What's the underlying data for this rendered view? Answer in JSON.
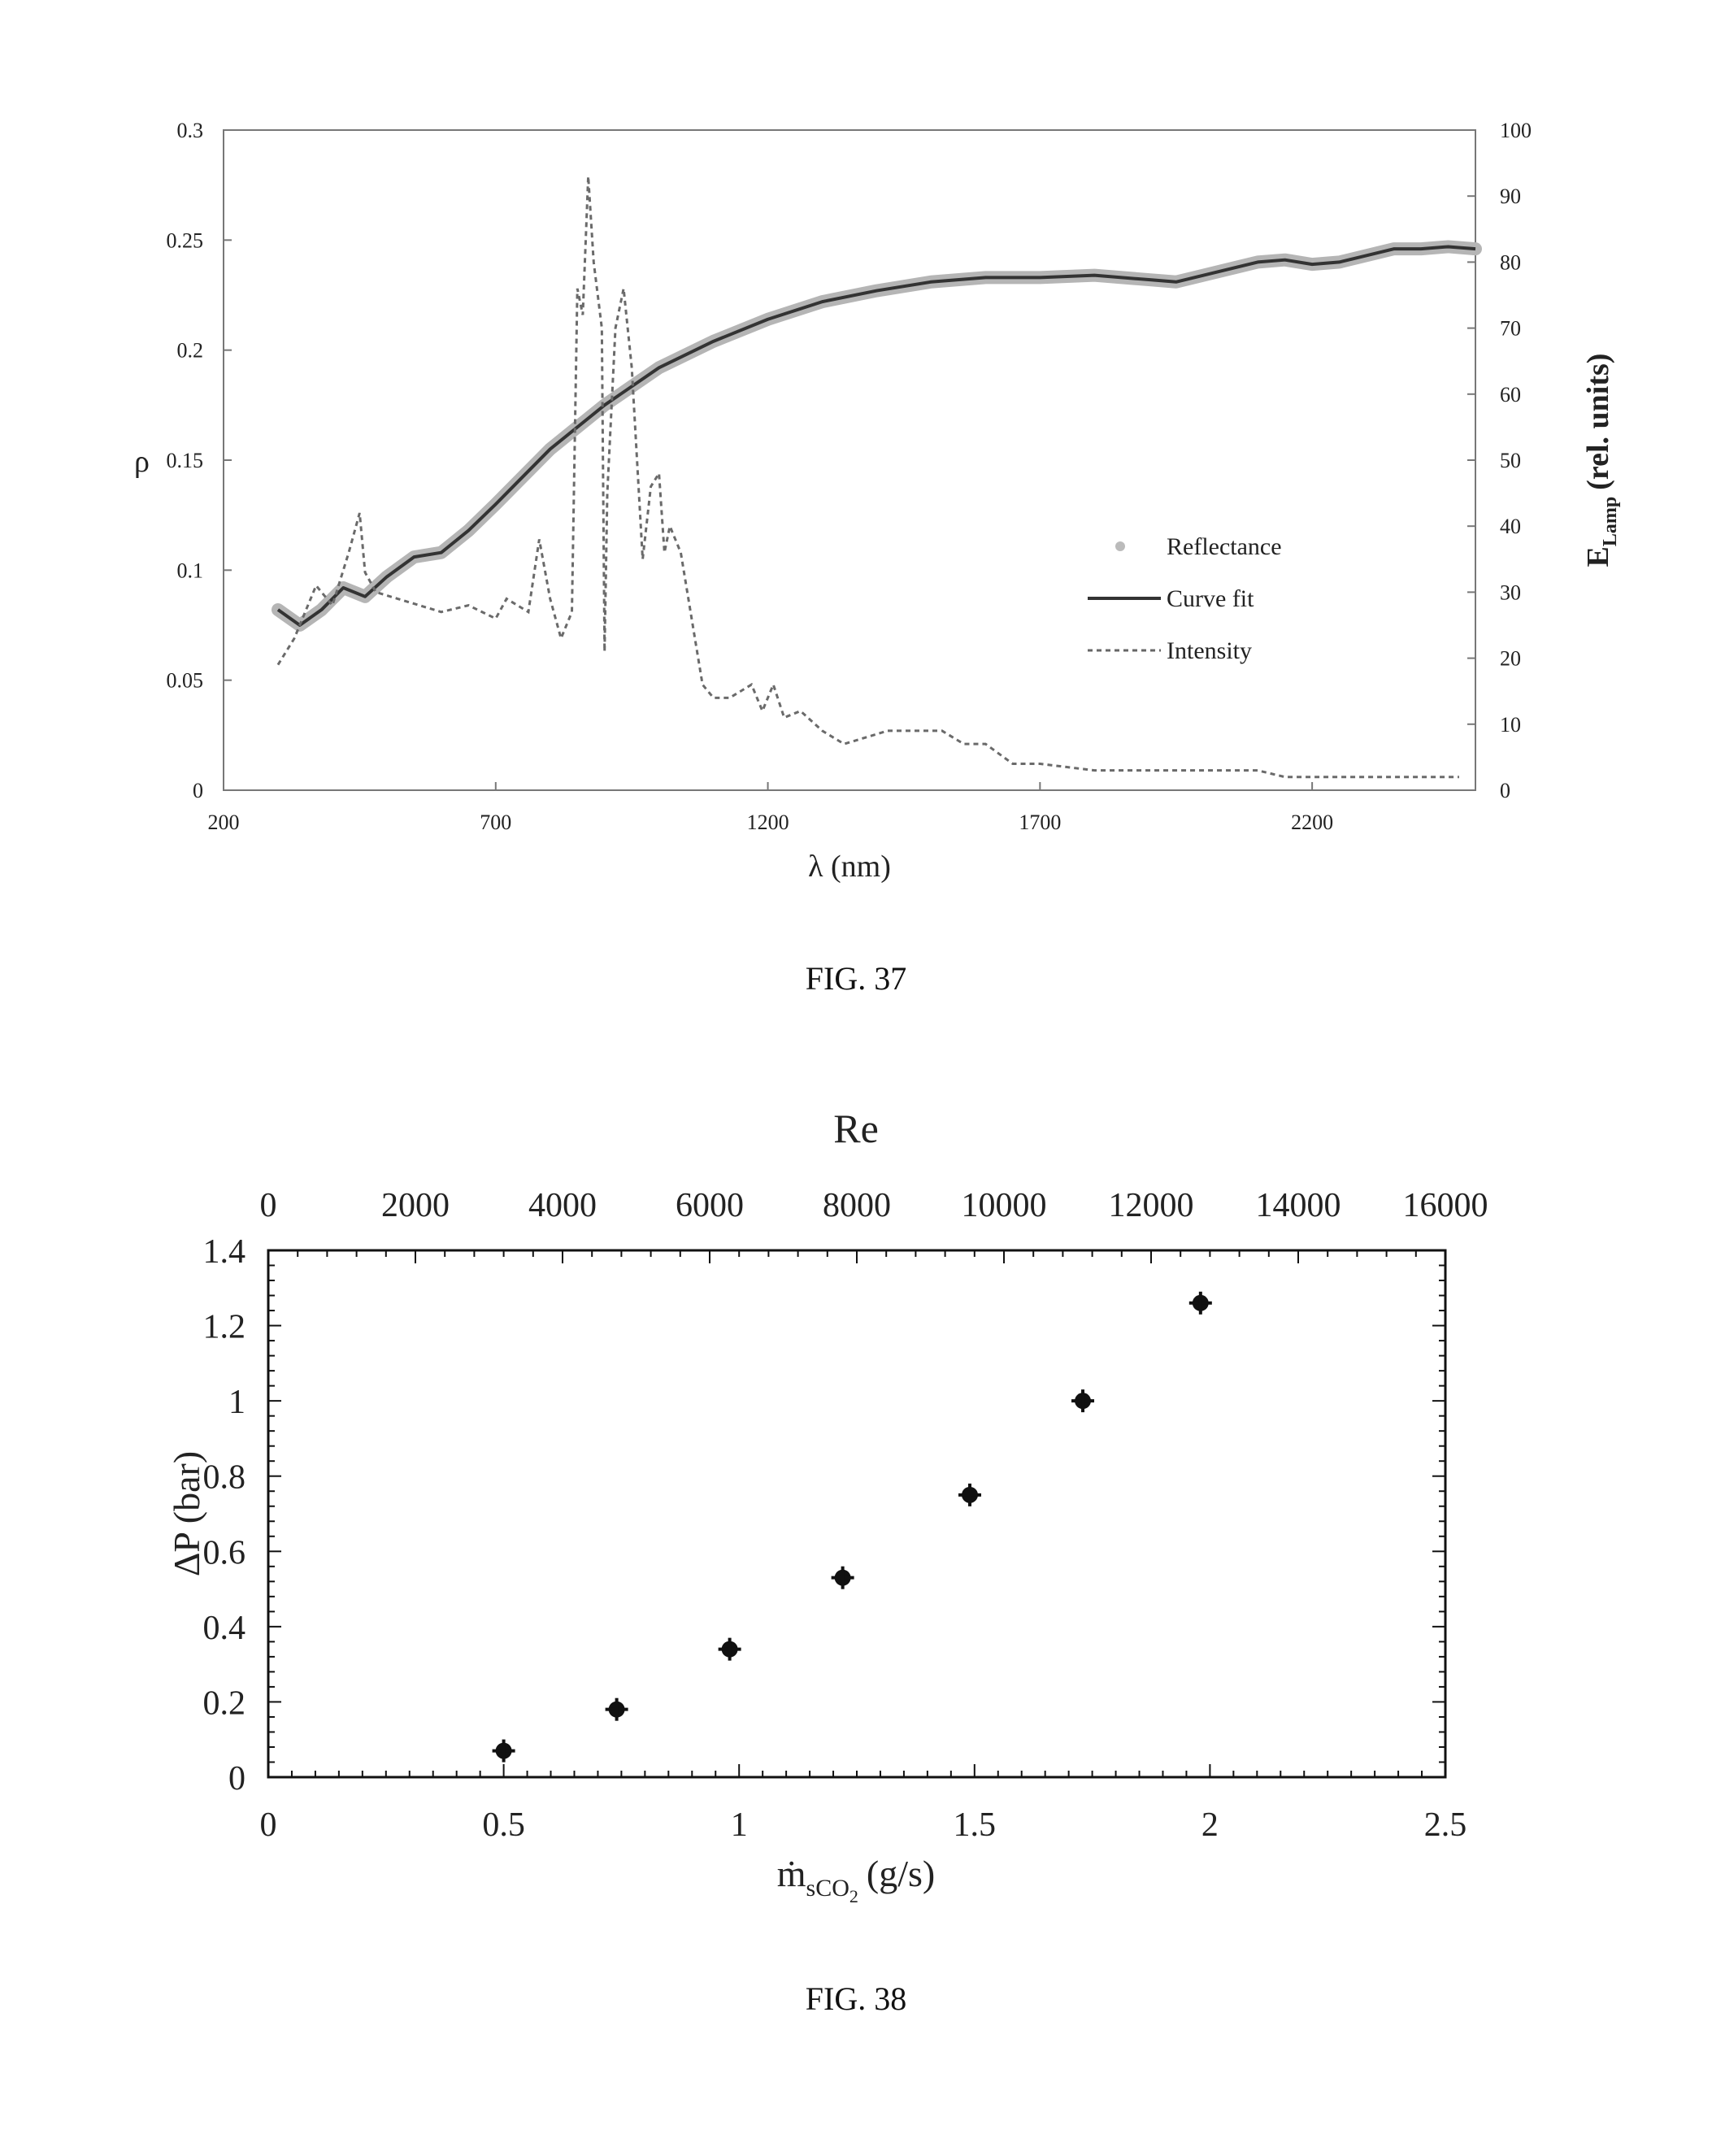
{
  "fig37": {
    "caption": "FIG. 37",
    "chart_data": {
      "type": "line",
      "xlabel": "λ (nm)",
      "ylabel_left": "ρ",
      "ylabel_right_main": "E",
      "ylabel_right_sub": "Lamp",
      "ylabel_right_rest": "(rel. units)",
      "xlim": [
        200,
        2500
      ],
      "ylim_left": [
        0,
        0.3
      ],
      "ylim_right": [
        0,
        100
      ],
      "x_ticks": [
        200,
        700,
        1200,
        1700,
        2200
      ],
      "y_left_ticks": [
        "0",
        "0.05",
        "0.1",
        "0.15",
        "0.2",
        "0.25",
        "0.3"
      ],
      "y_left_tick_values": [
        0,
        0.05,
        0.1,
        0.15,
        0.2,
        0.25,
        0.3
      ],
      "y_right_ticks": [
        0,
        10,
        20,
        30,
        40,
        50,
        60,
        70,
        80,
        90,
        100
      ],
      "legend": {
        "position": "center-right",
        "entries": [
          {
            "label": "Reflectance",
            "style": "markers"
          },
          {
            "label": "Curve fit",
            "style": "solid"
          },
          {
            "label": "Intensity",
            "style": "dashed"
          }
        ]
      },
      "series": [
        {
          "name": "Reflectance",
          "axis": "left",
          "x": [
            300,
            340,
            380,
            420,
            460,
            500,
            550,
            600,
            650,
            700,
            800,
            900,
            1000,
            1100,
            1200,
            1300,
            1400,
            1500,
            1600,
            1700,
            1800,
            1900,
            1950,
            2000,
            2100,
            2150,
            2200,
            2250,
            2300,
            2350,
            2400,
            2450,
            2500
          ],
          "y": [
            0.082,
            0.075,
            0.082,
            0.092,
            0.088,
            0.097,
            0.106,
            0.108,
            0.118,
            0.13,
            0.155,
            0.175,
            0.192,
            0.204,
            0.214,
            0.222,
            0.227,
            0.231,
            0.233,
            0.233,
            0.234,
            0.232,
            0.231,
            0.234,
            0.24,
            0.241,
            0.239,
            0.24,
            0.243,
            0.246,
            0.246,
            0.247,
            0.246
          ]
        },
        {
          "name": "Curve fit",
          "axis": "left",
          "x": [
            300,
            340,
            380,
            420,
            460,
            500,
            550,
            600,
            650,
            700,
            800,
            900,
            1000,
            1100,
            1200,
            1300,
            1400,
            1500,
            1600,
            1700,
            1800,
            1900,
            1950,
            2000,
            2100,
            2150,
            2200,
            2250,
            2300,
            2350,
            2400,
            2450,
            2500
          ],
          "y": [
            0.082,
            0.075,
            0.082,
            0.092,
            0.088,
            0.097,
            0.106,
            0.108,
            0.118,
            0.13,
            0.155,
            0.175,
            0.192,
            0.204,
            0.214,
            0.222,
            0.227,
            0.231,
            0.233,
            0.233,
            0.234,
            0.232,
            0.231,
            0.234,
            0.24,
            0.241,
            0.239,
            0.24,
            0.243,
            0.246,
            0.246,
            0.247,
            0.246
          ]
        },
        {
          "name": "Intensity",
          "axis": "right",
          "x": [
            300,
            330,
            370,
            400,
            430,
            450,
            460,
            480,
            520,
            600,
            650,
            700,
            720,
            760,
            780,
            800,
            820,
            840,
            850,
            860,
            870,
            880,
            895,
            900,
            905,
            920,
            935,
            950,
            970,
            985,
            1000,
            1010,
            1020,
            1040,
            1060,
            1080,
            1100,
            1130,
            1170,
            1190,
            1210,
            1230,
            1260,
            1300,
            1340,
            1380,
            1420,
            1470,
            1520,
            1560,
            1600,
            1650,
            1700,
            1800,
            1900,
            2100,
            2150,
            2300,
            2420,
            2470
          ],
          "y": [
            19,
            23,
            31,
            28,
            36,
            42,
            33,
            30,
            29,
            27,
            28,
            26,
            29,
            27,
            38,
            29,
            23,
            27,
            76,
            72,
            93,
            80,
            70,
            21,
            45,
            70,
            76,
            64,
            35,
            46,
            48,
            36,
            40,
            36,
            26,
            16,
            14,
            14,
            16,
            12,
            16,
            11,
            12,
            9,
            7,
            8,
            9,
            9,
            9,
            7,
            7,
            4,
            4,
            3,
            3,
            3,
            2,
            2,
            2,
            2
          ]
        }
      ]
    }
  },
  "fig38": {
    "caption": "FIG. 38",
    "chart_data": {
      "type": "scatter",
      "top_axis_title": "Re",
      "xlabel": "ṁ",
      "xlabel_sub": "sCO",
      "xlabel_sub2": "2",
      "xlabel_unit": "(g/s)",
      "ylabel": "ΔP (bar)",
      "xlim": [
        0,
        2.5
      ],
      "ylim": [
        0,
        1.4
      ],
      "x2lim": [
        0,
        16000
      ],
      "x_ticks": [
        "0",
        "0.5",
        "1",
        "1.5",
        "2",
        "2.5"
      ],
      "x_tick_values": [
        0,
        0.5,
        1,
        1.5,
        2,
        2.5
      ],
      "y_ticks": [
        "0",
        "0.2",
        "0.4",
        "0.6",
        "0.8",
        "1",
        "1.2",
        "1.4"
      ],
      "y_tick_values": [
        0,
        0.2,
        0.4,
        0.6,
        0.8,
        1,
        1.2,
        1.4
      ],
      "x2_ticks": [
        0,
        2000,
        4000,
        6000,
        8000,
        10000,
        12000,
        14000,
        16000
      ],
      "series": [
        {
          "name": "ΔP",
          "x": [
            0.5,
            0.74,
            0.98,
            1.22,
            1.49,
            1.73,
            1.98
          ],
          "y": [
            0.07,
            0.18,
            0.34,
            0.53,
            0.75,
            1.0,
            1.26
          ]
        }
      ]
    }
  }
}
